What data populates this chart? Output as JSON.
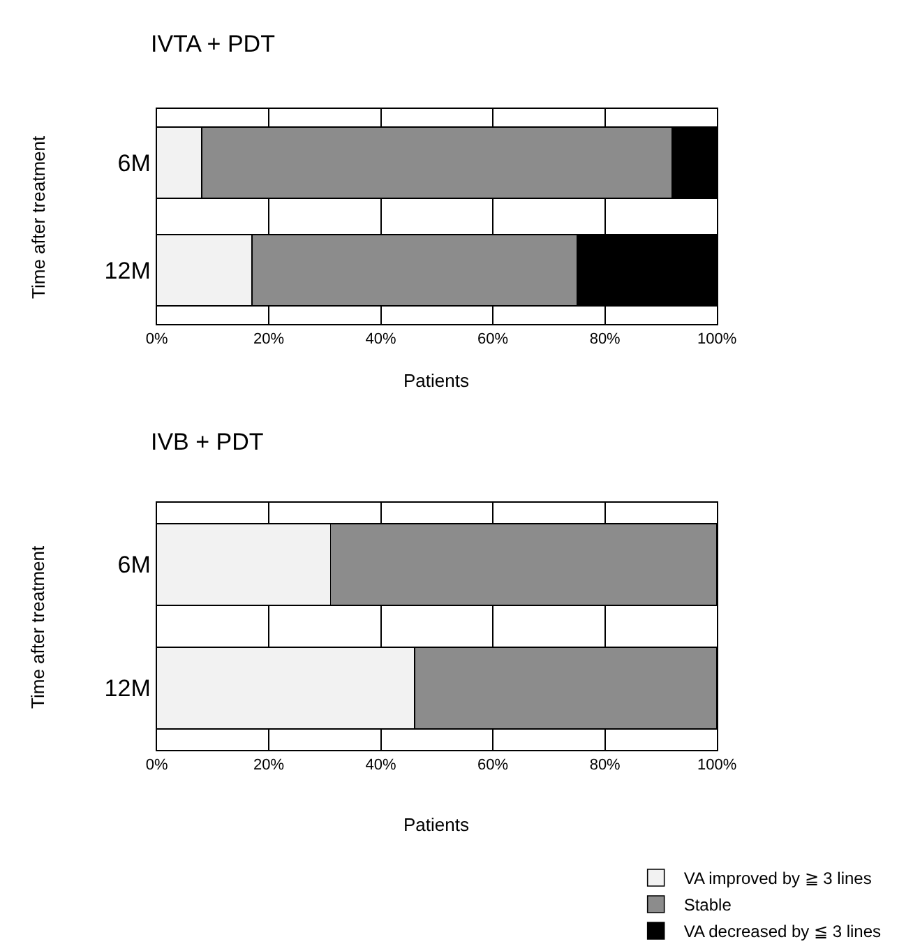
{
  "chart_data": [
    {
      "type": "bar",
      "title": "IVTA + PDT",
      "xlabel": "Patients",
      "ylabel": "Time after treatment",
      "orientation": "horizontal",
      "stacked": true,
      "categories": [
        "6M",
        "12M"
      ],
      "series": [
        {
          "name": "VA improved by ≧ 3 lines",
          "color": "#f2f2f2",
          "values": [
            8,
            17
          ]
        },
        {
          "name": "Stable",
          "color": "#8c8c8c",
          "values": [
            84,
            58
          ]
        },
        {
          "name": "VA decreased by ≦ 3 lines",
          "color": "#000000",
          "values": [
            8,
            25
          ]
        }
      ],
      "xlim": [
        0,
        100
      ],
      "xticks": [
        {
          "value": 0,
          "label": "0%"
        },
        {
          "value": 20,
          "label": "20%"
        },
        {
          "value": 40,
          "label": "40%"
        },
        {
          "value": 60,
          "label": "60%"
        },
        {
          "value": 80,
          "label": "80%"
        },
        {
          "value": 100,
          "label": "100%"
        }
      ],
      "grid": "x",
      "legend": "bottom right"
    },
    {
      "type": "bar",
      "title": "IVB + PDT",
      "xlabel": "Patients",
      "ylabel": "Time after treatment",
      "orientation": "horizontal",
      "stacked": true,
      "categories": [
        "6M",
        "12M"
      ],
      "series": [
        {
          "color": "#f2f2f2",
          "values": [
            31,
            46
          ]
        },
        {
          "color": "#8c8c8c",
          "values": [
            69,
            54
          ]
        }
      ],
      "xlim": [
        0,
        100
      ],
      "xticks": [
        {
          "value": 0,
          "label": "0%"
        },
        {
          "value": 20,
          "label": "20%"
        },
        {
          "value": 40,
          "label": "40%"
        },
        {
          "value": 60,
          "label": "60%"
        },
        {
          "value": 80,
          "label": "80%"
        },
        {
          "value": 100,
          "label": "100%"
        }
      ],
      "grid": "x"
    }
  ]
}
